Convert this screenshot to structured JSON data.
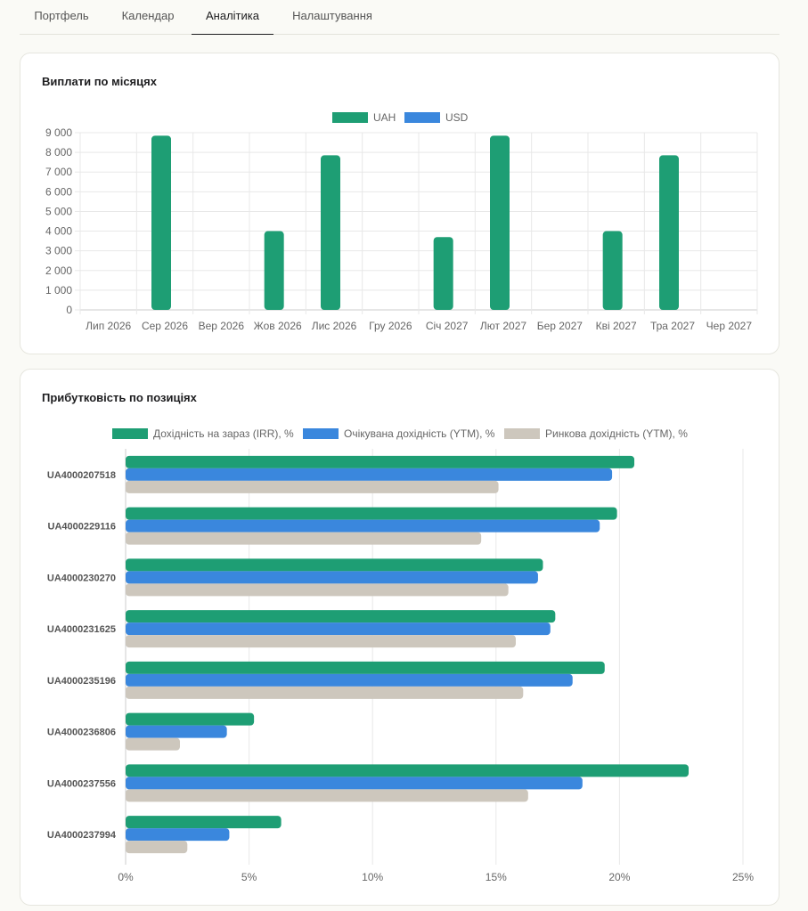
{
  "tabs": [
    {
      "label": "Портфель",
      "active": false
    },
    {
      "label": "Календар",
      "active": false
    },
    {
      "label": "Аналітика",
      "active": true
    },
    {
      "label": "Налаштування",
      "active": false
    }
  ],
  "colors": {
    "uah": "#1e9e74",
    "usd": "#3a87dd",
    "market": "#cdc7bd",
    "grid": "#e8e8e8",
    "axis_text": "#666666"
  },
  "payments_card": {
    "title": "Виплати по місяцях"
  },
  "yield_card": {
    "title": "Прибутковість по позиціях"
  },
  "chart_data": [
    {
      "type": "bar",
      "title": "Виплати по місяцях",
      "categories": [
        "Лип 2026",
        "Сер 2026",
        "Вер 2026",
        "Жов 2026",
        "Лис 2026",
        "Гру 2026",
        "Січ 2027",
        "Лют 2027",
        "Бер 2027",
        "Кві 2027",
        "Тра 2027",
        "Чер 2027"
      ],
      "series": [
        {
          "name": "UAH",
          "values": [
            0,
            8850,
            0,
            4000,
            7850,
            0,
            3700,
            8850,
            0,
            4000,
            7850,
            0
          ]
        },
        {
          "name": "USD",
          "values": [
            0,
            0,
            0,
            0,
            0,
            0,
            0,
            0,
            0,
            0,
            0,
            0
          ]
        }
      ],
      "y_ticks": [
        "0",
        "1 000",
        "2 000",
        "3 000",
        "4 000",
        "5 000",
        "6 000",
        "7 000",
        "8 000",
        "9 000"
      ],
      "ylim": [
        0,
        9000
      ],
      "grid": true,
      "legend": "top-center"
    },
    {
      "type": "bar",
      "orientation": "horizontal",
      "title": "Прибутковість по позиціях",
      "categories": [
        "UA4000207518",
        "UA4000229116",
        "UA4000230270",
        "UA4000231625",
        "UA4000235196",
        "UA4000236806",
        "UA4000237556",
        "UA4000237994"
      ],
      "series": [
        {
          "name": "Дохідність на зараз (IRR), %",
          "values": [
            20.6,
            19.9,
            16.9,
            17.4,
            19.4,
            5.2,
            22.8,
            6.3
          ]
        },
        {
          "name": "Очікувана дохідність (YTM), %",
          "values": [
            19.7,
            19.2,
            16.7,
            17.2,
            18.1,
            4.1,
            18.5,
            4.2
          ]
        },
        {
          "name": "Ринкова дохідність (YTM), %",
          "values": [
            15.1,
            14.4,
            15.5,
            15.8,
            16.1,
            2.2,
            16.3,
            2.5
          ]
        }
      ],
      "x_ticks": [
        "0%",
        "5%",
        "10%",
        "15%",
        "20%",
        "25%"
      ],
      "xlim": [
        0,
        25
      ],
      "grid": true,
      "legend": "top-center"
    }
  ]
}
